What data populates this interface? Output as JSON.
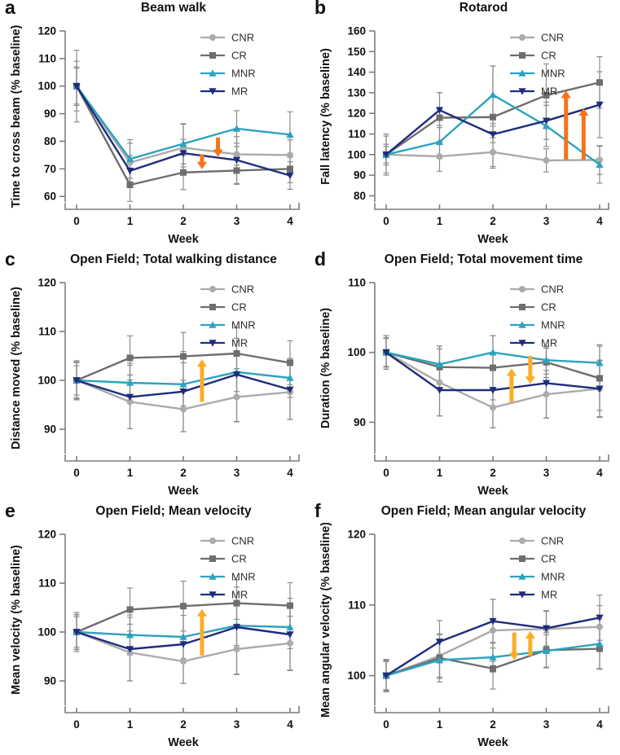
{
  "figure_name": "Behavioral test results figure",
  "xlabel": "Week",
  "legend": {
    "position": "top-right",
    "entries": [
      "CNR",
      "CR",
      "MNR",
      "MR"
    ]
  },
  "colors": {
    "CNR": "#ABABAB",
    "CR": "#6E6E6E",
    "MNR": "#2BA3BE",
    "MR": "#1F2C7C",
    "error_bar": "#8C8C8C",
    "arrow_orange": "#F4731B",
    "arrow_amber": "#FBAD26",
    "axis": "#7d7d7d",
    "text": "#111111"
  },
  "markers": {
    "CNR": "circle",
    "CR": "square",
    "MNR": "triangle-up",
    "MR": "triangle-down"
  },
  "chart_data": [
    {
      "type": "line",
      "letter": "a",
      "title": "Beam walk",
      "ylabel": "Time to cross beam (% baseline)",
      "xlabel": "Week",
      "x": [
        0,
        1,
        2,
        3,
        4
      ],
      "xticks": [
        0,
        1,
        2,
        3,
        4
      ],
      "yticks": [
        60,
        70,
        80,
        90,
        100,
        110,
        120
      ],
      "ylim": [
        58,
        120
      ],
      "grid": false,
      "series": [
        {
          "name": "CNR",
          "values": [
            100,
            72.3,
            77.7,
            75.3,
            75.0
          ],
          "err": [
            13,
            7,
            8.5,
            4,
            5.5
          ]
        },
        {
          "name": "CR",
          "values": [
            100,
            64.2,
            68.7,
            69.4,
            70.0
          ],
          "err": [
            7,
            6,
            6.2,
            5,
            5
          ]
        },
        {
          "name": "MNR",
          "values": [
            100,
            73.6,
            79.1,
            84.6,
            82.4
          ],
          "err": [
            6.5,
            7,
            7.3,
            6.5,
            8.3
          ]
        },
        {
          "name": "MR",
          "values": [
            100,
            69.3,
            75.7,
            73.2,
            67.6
          ],
          "err": [
            9,
            5.5,
            5,
            8.5,
            5
          ]
        }
      ],
      "arrows": [
        {
          "x": 2.35,
          "from": 75.3,
          "to": 69.9,
          "color_key": "arrow_orange"
        },
        {
          "x": 2.65,
          "from": 81.4,
          "to": 74.4,
          "color_key": "arrow_orange"
        }
      ]
    },
    {
      "type": "line",
      "letter": "b",
      "title": "Rotarod",
      "ylabel": "Fall latency (% baseline)",
      "xlabel": "Week",
      "x": [
        0,
        1,
        2,
        3,
        4
      ],
      "xticks": [
        0,
        1,
        2,
        3,
        4
      ],
      "yticks": [
        80,
        90,
        100,
        110,
        120,
        130,
        140,
        150,
        160
      ],
      "ylim": [
        77,
        160
      ],
      "grid": false,
      "series": [
        {
          "name": "CNR",
          "values": [
            100,
            99.1,
            101.2,
            97.2,
            97.4
          ],
          "err": [
            10,
            7.2,
            7,
            5.6,
            7
          ]
        },
        {
          "name": "CR",
          "values": [
            100,
            117.9,
            118.2,
            128.8,
            135.0
          ],
          "err": [
            5,
            12.2,
            24.8,
            15.2,
            12.5
          ]
        },
        {
          "name": "MNR",
          "values": [
            100,
            106.1,
            129.0,
            113.9,
            95.1
          ],
          "err": [
            4,
            8,
            14,
            10,
            9
          ]
        },
        {
          "name": "MR",
          "values": [
            100,
            121.6,
            109.8,
            116.4,
            124.2
          ],
          "err": [
            9,
            8.5,
            4,
            9,
            16
          ]
        }
      ],
      "arrows": [
        {
          "x": 3.37,
          "from": 97.5,
          "to": 131.0,
          "color_key": "arrow_orange"
        },
        {
          "x": 3.7,
          "from": 97.5,
          "to": 122.5,
          "color_key": "arrow_orange"
        }
      ]
    },
    {
      "type": "line",
      "letter": "c",
      "title": "Open Field; Total walking distance",
      "ylabel": "Distance moved (% baseline)",
      "xlabel": "Week",
      "x": [
        0,
        1,
        2,
        3,
        4
      ],
      "xticks": [
        0,
        1,
        2,
        3,
        4
      ],
      "yticks": [
        90,
        100,
        110,
        120
      ],
      "ylim": [
        85,
        120
      ],
      "grid": false,
      "series": [
        {
          "name": "CNR",
          "values": [
            100,
            95.6,
            94.1,
            96.6,
            97.6
          ],
          "err": [
            3.8,
            5.5,
            4.6,
            5.1,
            5.6
          ]
        },
        {
          "name": "CR",
          "values": [
            100,
            104.6,
            104.9,
            105.5,
            103.6
          ],
          "err": [
            3.6,
            4.5,
            4.9,
            3.1,
            4.5
          ]
        },
        {
          "name": "MNR",
          "values": [
            100,
            99.5,
            99.2,
            101.7,
            100.5
          ],
          "err": [
            3,
            4,
            4.4,
            4,
            4
          ]
        },
        {
          "name": "MR",
          "values": [
            100,
            96.6,
            97.7,
            101.2,
            98.1
          ],
          "err": [
            4,
            6.5,
            8.2,
            9.6,
            6.1
          ]
        }
      ],
      "arrows": [
        {
          "x": 2.35,
          "from": 95.6,
          "to": 104.3,
          "color_key": "arrow_amber"
        }
      ]
    },
    {
      "type": "line",
      "letter": "d",
      "title": "Open Field; Total movement time",
      "ylabel": "Duration (% baseline)",
      "xlabel": "Week",
      "x": [
        0,
        1,
        2,
        3,
        4
      ],
      "xticks": [
        0,
        1,
        2,
        3,
        4
      ],
      "yticks": [
        90,
        100,
        110
      ],
      "ylim": [
        85.5,
        110
      ],
      "grid": false,
      "series": [
        {
          "name": "CNR",
          "values": [
            100,
            95.7,
            92.1,
            94.0,
            94.8
          ],
          "err": [
            2.4,
            4.8,
            2.9,
            3.4,
            4.0
          ]
        },
        {
          "name": "CR",
          "values": [
            100,
            97.9,
            97.8,
            98.6,
            96.3
          ],
          "err": [
            2.0,
            3.0,
            4.6,
            2.2,
            4.6
          ]
        },
        {
          "name": "MNR",
          "values": [
            100,
            98.3,
            100.0,
            98.9,
            98.5
          ],
          "err": [
            2.1,
            2.6,
            2.4,
            2.0,
            2.6
          ]
        },
        {
          "name": "MR",
          "values": [
            100,
            94.6,
            94.6,
            95.6,
            94.8
          ],
          "err": [
            2.4,
            3.7,
            5.4,
            5.0,
            4.1
          ]
        }
      ],
      "arrows": [
        {
          "x": 2.35,
          "from": 92.9,
          "to": 97.7,
          "color_key": "arrow_amber"
        },
        {
          "x": 2.7,
          "from": 99.5,
          "to": 95.5,
          "color_key": "arrow_amber"
        }
      ]
    },
    {
      "type": "line",
      "letter": "e",
      "title": "Open Field; Mean velocity",
      "ylabel": "Mean velocity (% baseline)",
      "xlabel": "Week",
      "x": [
        0,
        1,
        2,
        3,
        4
      ],
      "xticks": [
        0,
        1,
        2,
        3,
        4
      ],
      "yticks": [
        90,
        100,
        110,
        120
      ],
      "ylim": [
        85,
        120
      ],
      "grid": false,
      "series": [
        {
          "name": "CNR",
          "values": [
            100,
            95.8,
            94.0,
            96.5,
            97.7
          ],
          "err": [
            3.6,
            5.8,
            4.5,
            5.1,
            5.5
          ]
        },
        {
          "name": "CR",
          "values": [
            100,
            104.6,
            105.3,
            105.9,
            105.4
          ],
          "err": [
            3.5,
            4.4,
            5.1,
            3.3,
            4.7
          ]
        },
        {
          "name": "MNR",
          "values": [
            100,
            99.4,
            99.0,
            101.3,
            101.0
          ],
          "err": [
            3.1,
            4.1,
            4.4,
            4.1,
            4.4
          ]
        },
        {
          "name": "MR",
          "values": [
            100,
            96.5,
            97.5,
            101.0,
            99.5
          ],
          "err": [
            4,
            6.5,
            8,
            9.7,
            7.4
          ]
        }
      ],
      "arrows": [
        {
          "x": 2.35,
          "from": 95.2,
          "to": 104.7,
          "color_key": "arrow_amber"
        }
      ]
    },
    {
      "type": "line",
      "letter": "f",
      "title": "Open Field; Mean angular velocity",
      "ylabel": "Mean angular velocity (% baseline)",
      "xlabel": "Week",
      "x": [
        0,
        1,
        2,
        3,
        4
      ],
      "xticks": [
        0,
        1,
        2,
        3,
        4
      ],
      "yticks": [
        100,
        110,
        120
      ],
      "ylim": [
        95.8,
        120
      ],
      "grid": false,
      "series": [
        {
          "name": "CNR",
          "values": [
            100,
            102.8,
            106.4,
            106.6,
            106.9
          ],
          "err": [
            2.2,
            3.0,
            4.4,
            2.5,
            3.0
          ]
        },
        {
          "name": "CR",
          "values": [
            100,
            102.5,
            101.0,
            103.6,
            103.8
          ],
          "err": [
            2.0,
            3.4,
            2.9,
            2.5,
            2.9
          ]
        },
        {
          "name": "MNR",
          "values": [
            100,
            102.2,
            102.6,
            103.5,
            104.5
          ],
          "err": [
            2.1,
            2.6,
            2.1,
            2.3,
            3.5
          ]
        },
        {
          "name": "MR",
          "values": [
            100,
            104.8,
            107.7,
            106.7,
            108.2
          ],
          "err": [
            2.3,
            3.0,
            3.1,
            2.5,
            3.2
          ]
        }
      ],
      "arrows": [
        {
          "x": 2.4,
          "from": 106.1,
          "to": 102.2,
          "color_key": "arrow_amber"
        },
        {
          "x": 2.7,
          "from": 102.8,
          "to": 106.3,
          "color_key": "arrow_amber"
        }
      ]
    }
  ]
}
